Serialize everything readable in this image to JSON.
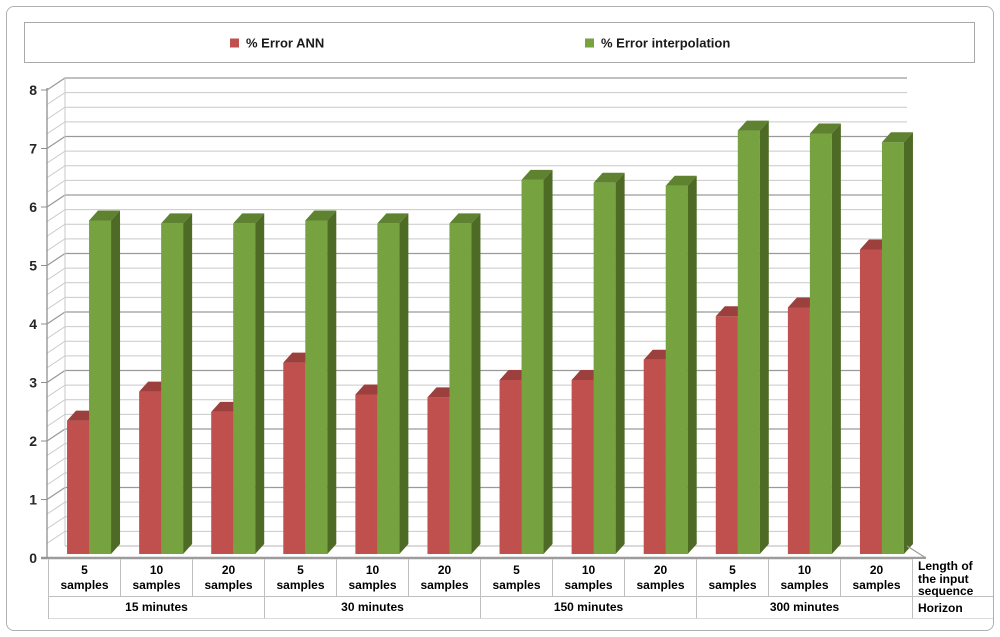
{
  "chart_data": {
    "type": "bar",
    "style": "3d-clustered",
    "title": "",
    "legend_position": "top",
    "grid": true,
    "ylim": [
      0,
      8
    ],
    "y_major_step": 1,
    "y_minor_step": 0.25,
    "y_ticks": [
      0,
      1,
      2,
      3,
      4,
      5,
      6,
      7,
      8
    ],
    "groups": [
      "15 minutes",
      "30 minutes",
      "150 minutes",
      "300 minutes"
    ],
    "categories_per_group": [
      "5 samples",
      "10 samples",
      "20 samples"
    ],
    "series": [
      {
        "name": "% Error ANN",
        "color": "#C0504D",
        "color_top": "#9C403D",
        "color_side": "#8B3937",
        "values": [
          2.3,
          2.8,
          2.45,
          3.3,
          2.75,
          2.7,
          3.0,
          3.0,
          3.35,
          4.1,
          4.25,
          5.25
        ]
      },
      {
        "name": "% Error interpolation",
        "color": "#77A240",
        "color_top": "#5F8230",
        "color_side": "#4E6B26",
        "values": [
          5.75,
          5.7,
          5.7,
          5.75,
          5.7,
          5.7,
          6.45,
          6.4,
          6.35,
          7.3,
          7.25,
          7.1
        ]
      }
    ],
    "axis_corner_labels": {
      "category_axis": "Length of the input sequence",
      "group_axis": "Horizon"
    }
  },
  "colors": {
    "grid_minor": "#C9C9C9",
    "grid_major": "#9A9A9A",
    "floor_back": "#B5B5B5",
    "axis": "#8F8F8F",
    "baseline": "#9C9C9C",
    "tick_label": "#262626",
    "table_border": "#BFBFBF",
    "page_border": "#B0B0B0",
    "legend_border": "#A9A9A9"
  }
}
